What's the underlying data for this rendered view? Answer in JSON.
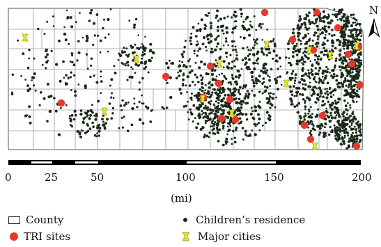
{
  "north_label": "N",
  "scale": {
    "ticks": [
      "0",
      "25",
      "50",
      "100",
      "150",
      "200"
    ],
    "unit": "(mi)"
  },
  "legend": {
    "county": "County",
    "tri": "TRI sites",
    "residence": "Children’s residence",
    "cities": "Major cities"
  },
  "colors": {
    "county_line": "#9a9a9a",
    "tri": "#e8382e",
    "residence": "#1a2a18",
    "city": "#e6e62a"
  },
  "icons": [
    "north-arrow-icon",
    "city-marker-icon"
  ]
}
